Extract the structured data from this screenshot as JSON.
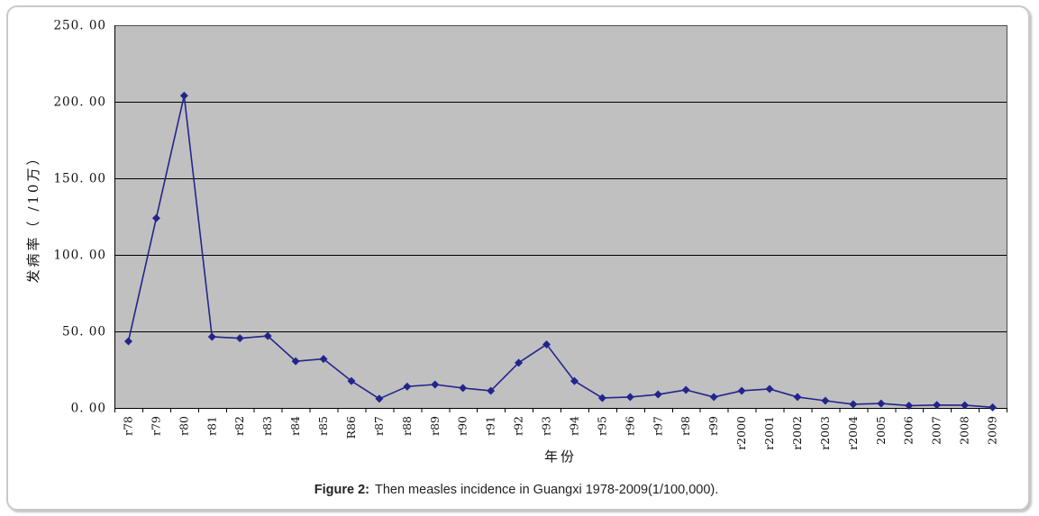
{
  "figure": {
    "caption_prefix": "Figure 2:",
    "caption_text": "Then measles incidence in Guangxi 1978-2009(1/100,000)."
  },
  "chart_data": {
    "type": "line",
    "title": "",
    "xlabel": "年份",
    "ylabel": "发病率（ /10万）",
    "ylim": [
      0,
      250
    ],
    "yticks": [
      0,
      50,
      100,
      150,
      200,
      250
    ],
    "ytick_labels": [
      "0. 00",
      "50. 00",
      "100. 00",
      "150. 00",
      "200. 00",
      "250. 00"
    ],
    "grid": true,
    "legend": "none",
    "categories": [
      "r78",
      "r79",
      "r80",
      "r81",
      "r82",
      "r83",
      "r84",
      "r85",
      "R86",
      "r87",
      "r88",
      "r89",
      "r90",
      "r91",
      "r92",
      "r93",
      "r94",
      "r95",
      "r96",
      "r97",
      "r98",
      "r99",
      "r2000",
      "r2001",
      "r2002",
      "r2003",
      "r2004",
      "2005",
      "2006",
      "2007",
      "2008",
      "2009"
    ],
    "values": [
      43.5,
      124,
      204,
      46.5,
      45.5,
      47,
      30.5,
      32,
      17.6,
      6,
      14,
      15.3,
      13,
      11.2,
      29.5,
      41.5,
      17.6,
      6.5,
      7.1,
      8.8,
      11.8,
      7.1,
      11.2,
      12.4,
      7.1,
      4.7,
      2.4,
      2.9,
      1.5,
      1.9,
      1.8,
      0.4
    ],
    "marker": "diamond",
    "colors": {
      "line": "#24248c",
      "marker": "#24248c",
      "plot_bg": "#c0c0c0",
      "gridline": "#000000",
      "axis": "#000000",
      "plot_border": "#4d4d4d",
      "frame_border": "#c9c9c9"
    }
  }
}
